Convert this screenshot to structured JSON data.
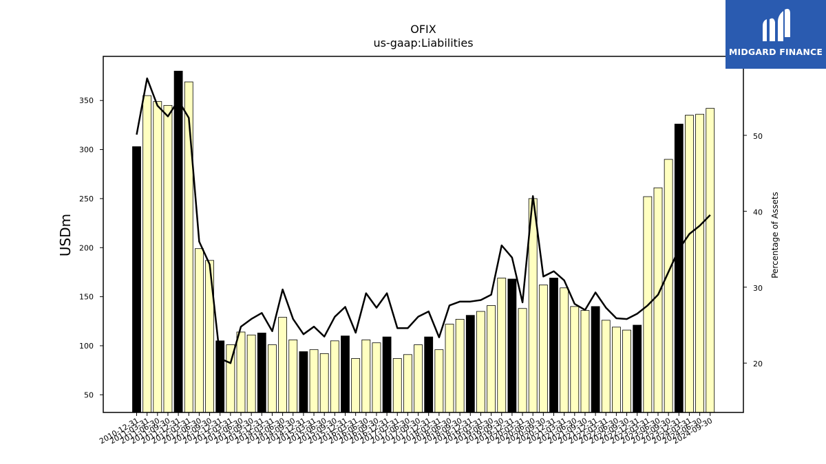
{
  "logo": {
    "text": "MIDGARD FINANCE",
    "background": "#2a5bb0"
  },
  "chart_data": {
    "type": "bar",
    "title": "OFIX",
    "subtitle": "us-gaap:Liabilities",
    "ylabel": "USDm",
    "y2label": "Percentage of Assets",
    "ylim": [
      32,
      395
    ],
    "y2lim": [
      13.5,
      60.4
    ],
    "yticks": [
      50,
      100,
      150,
      200,
      250,
      300,
      350
    ],
    "y2ticks": [
      20,
      30,
      40,
      50
    ],
    "colors": {
      "annual_bar": "#000000",
      "quarter_bar": "#ffffc0",
      "line": "#000000"
    },
    "categories": [
      "2010-12-31",
      "2011-03-31",
      "2011-06-30",
      "2011-09-30",
      "2011-12-31",
      "2012-03-31",
      "2012-06-30",
      "2012-09-30",
      "2012-12-31",
      "2013-03-31",
      "2013-06-30",
      "2013-09-30",
      "2013-12-31",
      "2014-03-31",
      "2014-06-30",
      "2014-09-30",
      "2014-12-31",
      "2015-03-31",
      "2015-06-30",
      "2015-09-30",
      "2015-12-31",
      "2016-03-31",
      "2016-06-30",
      "2016-09-30",
      "2016-12-31",
      "2017-03-31",
      "2017-06-30",
      "2017-09-30",
      "2017-12-31",
      "2018-03-31",
      "2018-06-30",
      "2018-09-30",
      "2018-12-31",
      "2019-03-31",
      "2019-06-30",
      "2019-09-30",
      "2019-12-31",
      "2020-03-31",
      "2020-06-30",
      "2020-09-30",
      "2020-12-31",
      "2021-03-31",
      "2021-06-30",
      "2021-09-30",
      "2021-12-31",
      "2022-03-31",
      "2022-06-30",
      "2022-09-30",
      "2022-12-31",
      "2023-03-31",
      "2023-06-30",
      "2023-09-30",
      "2023-12-31",
      "2024-03-31",
      "2024-06-30",
      "2024-09-30"
    ],
    "series": [
      {
        "values": [
          303,
          355,
          349,
          345,
          380,
          369,
          199,
          187,
          105,
          101,
          114,
          111,
          113,
          101,
          129,
          106,
          94,
          96,
          92,
          105,
          110,
          87,
          106,
          103,
          109,
          87,
          91,
          101,
          109,
          96,
          122,
          127,
          131,
          135,
          141,
          169,
          168,
          138,
          250,
          162,
          169,
          159,
          140,
          136,
          140,
          126,
          119,
          116,
          121,
          252,
          261,
          290,
          326,
          335,
          336,
          342
        ]
      },
      {
        "values": [
          50.1,
          57.5,
          53.9,
          52.5,
          54.6,
          52.3,
          36.0,
          33.0,
          20.6,
          20.0,
          24.8,
          25.8,
          26.6,
          24.2,
          29.7,
          25.8,
          23.8,
          24.8,
          23.5,
          26.1,
          27.4,
          24.0,
          29.2,
          27.3,
          29.2,
          24.6,
          24.6,
          26.1,
          26.8,
          23.4,
          27.6,
          28.1,
          28.1,
          28.3,
          29.0,
          35.5,
          33.9,
          28.0,
          42.0,
          31.4,
          32.1,
          30.9,
          27.8,
          27.0,
          29.3,
          27.3,
          25.9,
          25.8,
          26.5,
          27.6,
          29.0,
          32.0,
          35.0,
          37.0,
          38.1,
          39.5
        ]
      }
    ]
  }
}
